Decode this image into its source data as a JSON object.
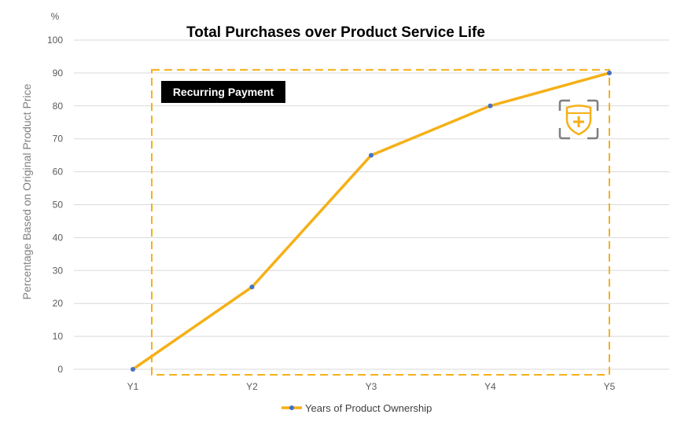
{
  "chart_data": {
    "type": "line",
    "title": "Total Purchases over Product Service Life",
    "xlabel": "",
    "ylabel": "Percentage Based on Original Product Price",
    "y_unit": "%",
    "categories": [
      "Y1",
      "Y2",
      "Y3",
      "Y4",
      "Y5"
    ],
    "series": [
      {
        "name": "Years of Product Ownership",
        "values": [
          0,
          25,
          65,
          80,
          90
        ]
      }
    ],
    "ylim": [
      0,
      100
    ],
    "yticks": [
      0,
      10,
      20,
      30,
      40,
      50,
      60,
      70,
      80,
      90,
      100
    ],
    "grid": true,
    "legend_position": "bottom",
    "annotation": {
      "label": "Recurring Payment",
      "x_range": [
        "Y1",
        "Y5"
      ],
      "y_range": [
        0,
        90
      ]
    }
  },
  "colors": {
    "series_line": "#F5B017",
    "marker": "#4472C4",
    "grid": "#D9D9D9",
    "annotation_border": "#F5B017",
    "badge_bg": "#000000",
    "icon_frame": "#7F7F7F",
    "icon_shield": "#F5B017"
  },
  "icons": {
    "annotation_icon": "shield-plus-icon"
  }
}
